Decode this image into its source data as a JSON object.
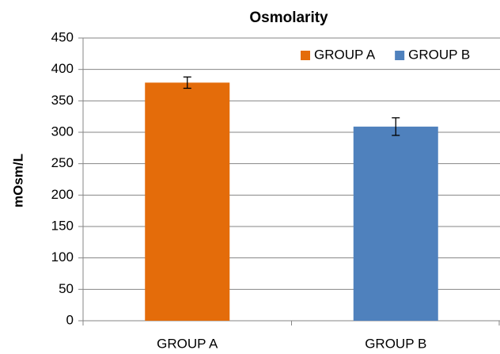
{
  "chart_data": {
    "type": "bar",
    "title": "Osmolarity",
    "y_label": "mOsm/L",
    "categories": [
      "GROUP A",
      "GROUP B"
    ],
    "series": [
      {
        "name": "GROUP A",
        "color": "#e46c0a",
        "values": [
          379,
          null
        ],
        "errors": [
          9,
          null
        ]
      },
      {
        "name": "GROUP B",
        "color": "#4f81bd",
        "values": [
          null,
          309
        ],
        "errors": [
          null,
          14
        ]
      }
    ],
    "ylim": [
      0,
      450
    ],
    "yticks": [
      0,
      50,
      100,
      150,
      200,
      250,
      300,
      350,
      400,
      450
    ],
    "grid": true,
    "legend": "top-right"
  }
}
